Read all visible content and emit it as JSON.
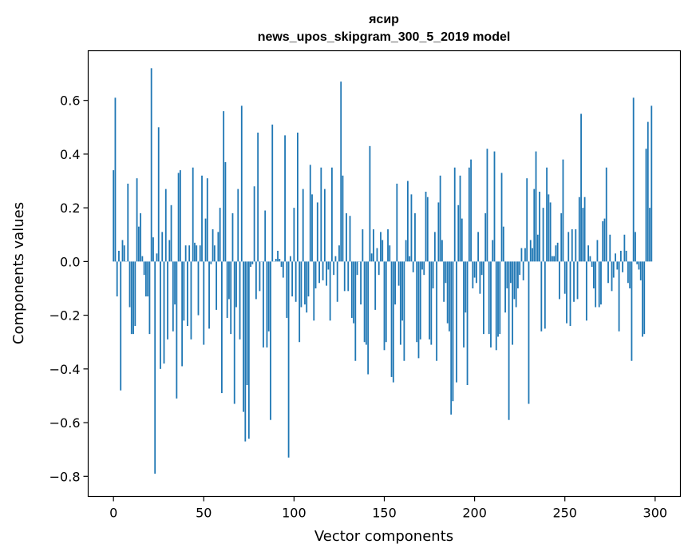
{
  "chart_data": {
    "type": "bar",
    "title": "ясир",
    "subtitle": "news_upos_skipgram_300_5_2019 model",
    "xlabel": "Vector components",
    "ylabel": "Components values",
    "xlim": [
      -14,
      314
    ],
    "ylim": [
      -0.875,
      0.785
    ],
    "xticks": [
      0,
      50,
      100,
      150,
      200,
      250,
      300
    ],
    "yticks": [
      -0.8,
      -0.6,
      -0.4,
      -0.2,
      0.0,
      0.2,
      0.4,
      0.6
    ],
    "xtick_labels": [
      "0",
      "50",
      "100",
      "150",
      "200",
      "250",
      "300"
    ],
    "ytick_labels": [
      "−0.8",
      "−0.6",
      "−0.4",
      "−0.2",
      "0.0",
      "0.2",
      "0.4",
      "0.6"
    ],
    "bar_color": "#1f77b4",
    "grid": false,
    "values": [
      0.34,
      0.61,
      -0.13,
      0.04,
      -0.48,
      0.08,
      0.06,
      0.0,
      0.29,
      -0.17,
      -0.27,
      -0.27,
      -0.24,
      0.31,
      0.13,
      0.18,
      0.02,
      -0.05,
      -0.13,
      -0.13,
      -0.27,
      0.72,
      0.09,
      -0.79,
      0.03,
      0.5,
      -0.4,
      0.11,
      -0.38,
      0.27,
      -0.29,
      0.08,
      0.21,
      -0.26,
      -0.16,
      -0.51,
      0.33,
      0.34,
      -0.39,
      -0.22,
      0.06,
      -0.24,
      0.06,
      -0.29,
      0.35,
      0.07,
      0.06,
      -0.2,
      0.06,
      0.32,
      -0.31,
      0.16,
      0.31,
      -0.25,
      -0.01,
      0.12,
      0.06,
      -0.18,
      0.11,
      0.2,
      -0.49,
      0.56,
      0.37,
      -0.21,
      -0.14,
      -0.27,
      0.18,
      -0.53,
      -0.17,
      0.27,
      -0.29,
      0.58,
      -0.56,
      -0.67,
      -0.46,
      -0.66,
      -0.02,
      -0.01,
      0.28,
      -0.14,
      0.48,
      -0.11,
      0.0,
      -0.32,
      0.19,
      -0.32,
      -0.26,
      -0.59,
      0.51,
      0.0,
      0.01,
      0.04,
      0.01,
      -0.02,
      -0.06,
      0.47,
      -0.21,
      -0.73,
      0.02,
      -0.13,
      0.2,
      -0.15,
      0.48,
      -0.3,
      -0.17,
      0.27,
      -0.16,
      -0.19,
      -0.13,
      0.36,
      0.25,
      -0.22,
      -0.1,
      0.22,
      -0.08,
      0.35,
      -0.07,
      0.27,
      -0.09,
      -0.03,
      -0.22,
      0.35,
      -0.05,
      0.02,
      -0.15,
      0.06,
      0.67,
      0.32,
      -0.11,
      0.18,
      -0.11,
      0.17,
      -0.21,
      -0.23,
      -0.37,
      -0.05,
      0.0,
      -0.16,
      0.12,
      -0.3,
      -0.31,
      -0.42,
      0.43,
      0.03,
      0.12,
      -0.18,
      0.05,
      -0.05,
      0.11,
      0.08,
      -0.33,
      -0.3,
      0.12,
      0.06,
      -0.43,
      -0.45,
      -0.16,
      0.29,
      -0.09,
      -0.31,
      -0.22,
      -0.37,
      0.08,
      0.3,
      0.02,
      0.25,
      -0.04,
      0.18,
      -0.3,
      -0.36,
      -0.29,
      -0.03,
      -0.05,
      0.26,
      0.24,
      -0.29,
      -0.31,
      -0.1,
      0.11,
      -0.37,
      0.22,
      0.32,
      0.08,
      -0.15,
      -0.08,
      -0.23,
      -0.26,
      -0.57,
      -0.52,
      0.35,
      -0.45,
      0.21,
      0.32,
      0.16,
      -0.32,
      -0.19,
      -0.46,
      0.35,
      0.38,
      -0.1,
      -0.06,
      -0.08,
      0.11,
      -0.12,
      -0.05,
      -0.27,
      0.18,
      0.42,
      -0.27,
      -0.32,
      0.08,
      0.41,
      -0.33,
      -0.28,
      -0.27,
      0.33,
      0.13,
      -0.19,
      -0.1,
      -0.59,
      -0.08,
      -0.31,
      -0.14,
      -0.17,
      -0.1,
      -0.05,
      0.05,
      -0.07,
      0.05,
      0.31,
      -0.53,
      0.08,
      0.05,
      0.27,
      0.41,
      0.1,
      0.26,
      -0.26,
      0.2,
      -0.25,
      0.35,
      0.25,
      0.22,
      0.02,
      0.02,
      0.06,
      0.07,
      -0.14,
      0.18,
      0.38,
      -0.12,
      -0.23,
      0.11,
      -0.24,
      0.12,
      -0.15,
      0.12,
      -0.14,
      0.24,
      0.55,
      0.2,
      0.24,
      -0.22,
      0.06,
      0.02,
      -0.02,
      -0.1,
      -0.17,
      0.08,
      -0.17,
      -0.16,
      0.15,
      0.16,
      0.35,
      -0.08,
      0.1,
      -0.11,
      -0.06,
      0.03,
      -0.03,
      -0.26,
      0.04,
      -0.04,
      0.1,
      0.04,
      -0.08,
      -0.1,
      -0.37,
      0.61,
      0.11,
      -0.01,
      -0.03,
      -0.07,
      -0.28,
      -0.27,
      0.42,
      0.52,
      0.2,
      0.58
    ]
  }
}
